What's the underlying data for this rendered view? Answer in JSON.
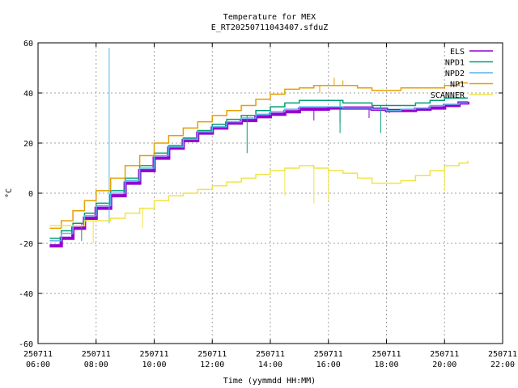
{
  "chart_data": {
    "type": "line",
    "title": "Temperature for MEX",
    "subtitle": "E_RT20250711043407.sfduZ",
    "xlabel": "Time (yymmdd HH:MM)",
    "ylabel": "°C",
    "xlim": [
      6,
      22
    ],
    "ylim": [
      -60,
      60
    ],
    "grid": true,
    "legend_position": "top-right",
    "x_ticks": [
      {
        "x": 6,
        "date": "250711",
        "time": "06:00"
      },
      {
        "x": 8,
        "date": "250711",
        "time": "08:00"
      },
      {
        "x": 10,
        "date": "250711",
        "time": "10:00"
      },
      {
        "x": 12,
        "date": "250711",
        "time": "12:00"
      },
      {
        "x": 14,
        "date": "250711",
        "time": "14:00"
      },
      {
        "x": 16,
        "date": "250711",
        "time": "16:00"
      },
      {
        "x": 18,
        "date": "250711",
        "time": "18:00"
      },
      {
        "x": 20,
        "date": "250711",
        "time": "20:00"
      },
      {
        "x": 22,
        "date": "250711",
        "time": "22:00"
      }
    ],
    "y_ticks": [
      {
        "y": 60,
        "label": "60"
      },
      {
        "y": 40,
        "label": "40"
      },
      {
        "y": 20,
        "label": "20"
      },
      {
        "y": 0,
        "label": "0"
      },
      {
        "y": -20,
        "label": "-20"
      },
      {
        "y": -40,
        "label": "-40"
      },
      {
        "y": -60,
        "label": "-60"
      }
    ],
    "series": [
      {
        "name": "ELS",
        "color": "#9400d3",
        "width": 4,
        "points": [
          [
            6.4,
            -21
          ],
          [
            6.8,
            -18
          ],
          [
            7.2,
            -14
          ],
          [
            7.6,
            -10
          ],
          [
            8.0,
            -6
          ],
          [
            8.5,
            -1
          ],
          [
            9.0,
            4
          ],
          [
            9.5,
            9
          ],
          [
            10.0,
            14
          ],
          [
            10.5,
            18
          ],
          [
            11.0,
            21
          ],
          [
            11.5,
            24
          ],
          [
            12.0,
            26
          ],
          [
            12.5,
            28
          ],
          [
            13.0,
            29
          ],
          [
            13.5,
            30.5
          ],
          [
            14.0,
            31.5
          ],
          [
            14.5,
            32.5
          ],
          [
            15.0,
            33.5
          ],
          [
            15.5,
            33.5
          ],
          [
            16.0,
            34
          ],
          [
            16.5,
            34
          ],
          [
            17.0,
            34
          ],
          [
            17.5,
            33.5
          ],
          [
            18.0,
            33
          ],
          [
            18.5,
            33
          ],
          [
            19.0,
            33.5
          ],
          [
            19.5,
            34
          ],
          [
            20.0,
            35
          ],
          [
            20.5,
            36
          ],
          [
            20.8,
            36.5
          ]
        ],
        "spikes": [
          [
            15.5,
            29
          ],
          [
            16.4,
            28
          ],
          [
            17.4,
            30
          ],
          [
            18.1,
            32
          ]
        ]
      },
      {
        "name": "NPD1",
        "color": "#009e73",
        "width": 1.5,
        "points": [
          [
            6.4,
            -18
          ],
          [
            6.8,
            -15
          ],
          [
            7.2,
            -12
          ],
          [
            7.6,
            -8
          ],
          [
            8.0,
            -4
          ],
          [
            8.5,
            1
          ],
          [
            9.0,
            6
          ],
          [
            9.5,
            11
          ],
          [
            10.0,
            16
          ],
          [
            10.5,
            19
          ],
          [
            11.0,
            22
          ],
          [
            11.5,
            25
          ],
          [
            12.0,
            27.5
          ],
          [
            12.5,
            29.5
          ],
          [
            13.0,
            31
          ],
          [
            13.5,
            33
          ],
          [
            14.0,
            34.5
          ],
          [
            14.5,
            36
          ],
          [
            15.0,
            37
          ],
          [
            15.5,
            37
          ],
          [
            16.0,
            37
          ],
          [
            16.5,
            36
          ],
          [
            17.0,
            36
          ],
          [
            17.5,
            35
          ],
          [
            18.0,
            35
          ],
          [
            18.5,
            35
          ],
          [
            19.0,
            36
          ],
          [
            19.5,
            37
          ],
          [
            20.0,
            38
          ],
          [
            20.5,
            38
          ],
          [
            20.8,
            38
          ]
        ],
        "spikes": [
          [
            7.5,
            -19
          ],
          [
            13.2,
            16
          ],
          [
            16.4,
            24
          ],
          [
            17.8,
            24
          ]
        ]
      },
      {
        "name": "NPD2",
        "color": "#56b4e9",
        "width": 1.5,
        "points": [
          [
            6.4,
            -19
          ],
          [
            6.8,
            -16
          ],
          [
            7.2,
            -13
          ],
          [
            7.6,
            -9
          ],
          [
            8.0,
            -5
          ],
          [
            8.5,
            0
          ],
          [
            9.0,
            5
          ],
          [
            9.5,
            10
          ],
          [
            10.0,
            15
          ],
          [
            10.5,
            18.5
          ],
          [
            11.0,
            21.5
          ],
          [
            11.5,
            24.5
          ],
          [
            12.0,
            26.5
          ],
          [
            12.5,
            28.5
          ],
          [
            13.0,
            30
          ],
          [
            13.5,
            31.5
          ],
          [
            14.0,
            32.5
          ],
          [
            14.5,
            33.5
          ],
          [
            15.0,
            34.5
          ],
          [
            15.5,
            34.5
          ],
          [
            16.0,
            34.5
          ],
          [
            16.5,
            34
          ],
          [
            17.0,
            34
          ],
          [
            17.5,
            33.5
          ],
          [
            18.0,
            33
          ],
          [
            18.5,
            33.5
          ],
          [
            19.0,
            34
          ],
          [
            19.5,
            35
          ],
          [
            20.0,
            35.5
          ],
          [
            20.5,
            36
          ],
          [
            20.8,
            36
          ]
        ],
        "spikes": [
          [
            8.45,
            58
          ],
          [
            8.45,
            -12
          ]
        ]
      },
      {
        "name": "NP1",
        "color": "#e69f00",
        "width": 1.5,
        "points": [
          [
            6.4,
            -14
          ],
          [
            6.8,
            -11
          ],
          [
            7.2,
            -7
          ],
          [
            7.6,
            -3
          ],
          [
            8.0,
            1
          ],
          [
            8.5,
            6
          ],
          [
            9.0,
            11
          ],
          [
            9.5,
            15
          ],
          [
            10.0,
            20
          ],
          [
            10.5,
            23
          ],
          [
            11.0,
            26
          ],
          [
            11.5,
            28.5
          ],
          [
            12.0,
            31
          ],
          [
            12.5,
            33
          ],
          [
            13.0,
            35
          ],
          [
            13.5,
            37.5
          ],
          [
            14.0,
            39.5
          ],
          [
            14.5,
            41.5
          ],
          [
            15.0,
            42
          ],
          [
            15.5,
            43
          ],
          [
            16.0,
            43
          ],
          [
            16.5,
            43
          ],
          [
            17.0,
            42
          ],
          [
            17.5,
            41
          ],
          [
            18.0,
            41
          ],
          [
            18.5,
            42
          ],
          [
            19.0,
            42
          ],
          [
            19.5,
            42
          ],
          [
            20.0,
            43
          ],
          [
            20.5,
            44
          ],
          [
            20.8,
            44
          ]
        ],
        "spikes": [
          [
            15.7,
            40
          ],
          [
            16.2,
            46
          ],
          [
            16.5,
            45
          ]
        ]
      },
      {
        "name": "SCANNER",
        "color": "#f0e442",
        "width": 1.5,
        "points": [
          [
            6.4,
            -13
          ],
          [
            6.8,
            -13
          ],
          [
            7.2,
            -13
          ],
          [
            7.6,
            -11
          ],
          [
            8.0,
            -11
          ],
          [
            8.5,
            -10
          ],
          [
            9.0,
            -8
          ],
          [
            9.5,
            -6
          ],
          [
            10.0,
            -3
          ],
          [
            10.5,
            -1
          ],
          [
            11.0,
            0
          ],
          [
            11.5,
            1.5
          ],
          [
            12.0,
            3
          ],
          [
            12.5,
            4.5
          ],
          [
            13.0,
            6
          ],
          [
            13.5,
            7.5
          ],
          [
            14.0,
            9
          ],
          [
            14.5,
            10
          ],
          [
            15.0,
            11
          ],
          [
            15.5,
            10
          ],
          [
            16.0,
            9
          ],
          [
            16.5,
            8
          ],
          [
            17.0,
            6
          ],
          [
            17.5,
            4
          ],
          [
            18.0,
            4
          ],
          [
            18.5,
            5
          ],
          [
            19.0,
            7
          ],
          [
            19.5,
            9
          ],
          [
            20.0,
            11
          ],
          [
            20.5,
            12
          ],
          [
            20.8,
            13
          ]
        ],
        "spikes": [
          [
            7.9,
            -20
          ],
          [
            9.6,
            -14
          ],
          [
            14.5,
            -1
          ],
          [
            15.5,
            -4
          ],
          [
            16.0,
            -3
          ],
          [
            20.0,
            1
          ]
        ]
      }
    ]
  }
}
